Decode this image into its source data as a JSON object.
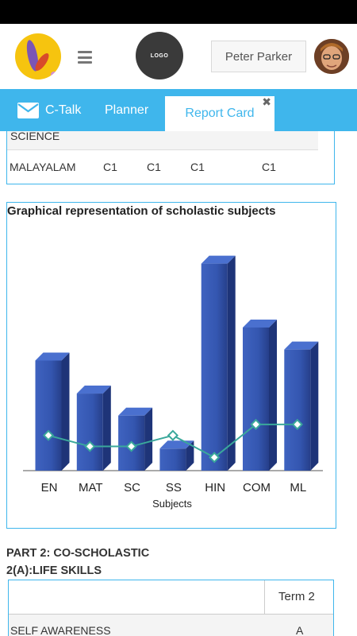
{
  "header": {
    "logo_text": "LOGO",
    "user_name": "Peter Parker"
  },
  "tabs": [
    {
      "label": "C-Talk",
      "icon": "mail-icon"
    },
    {
      "label": "Planner"
    },
    {
      "label": "Report Card",
      "active": true
    }
  ],
  "scholastic_table": {
    "partial_row": "SCIENCE",
    "row": {
      "subject": "MALAYALAM",
      "grades": [
        "C1",
        "C1",
        "C1",
        "C1"
      ]
    }
  },
  "chart_data": {
    "type": "bar",
    "title": "Graphical representation of scholastic subjects",
    "xlabel": "Subjects",
    "ylabel": "",
    "categories": [
      "EN",
      "MAT",
      "SC",
      "SS",
      "HIN",
      "COM",
      "ML"
    ],
    "series": [
      {
        "type": "bar",
        "values": [
          50,
          35,
          25,
          10,
          94,
          65,
          55
        ],
        "color": "#2d4fa6"
      },
      {
        "type": "line",
        "values": [
          16,
          11,
          11,
          16,
          6,
          21,
          21
        ],
        "color": "#3aa89b"
      }
    ],
    "ylim": [
      0,
      100
    ]
  },
  "part2": {
    "title": "PART 2: CO-SCHOLASTIC",
    "subtitle": "2(A):LIFE SKILLS",
    "term_header": "Term 2",
    "rows": [
      {
        "skill": "SELF AWARENESS",
        "grade": "A"
      }
    ]
  },
  "colors": {
    "accent": "#3fb6ec",
    "bar": "#2d4fa6",
    "line": "#3aa89b"
  }
}
